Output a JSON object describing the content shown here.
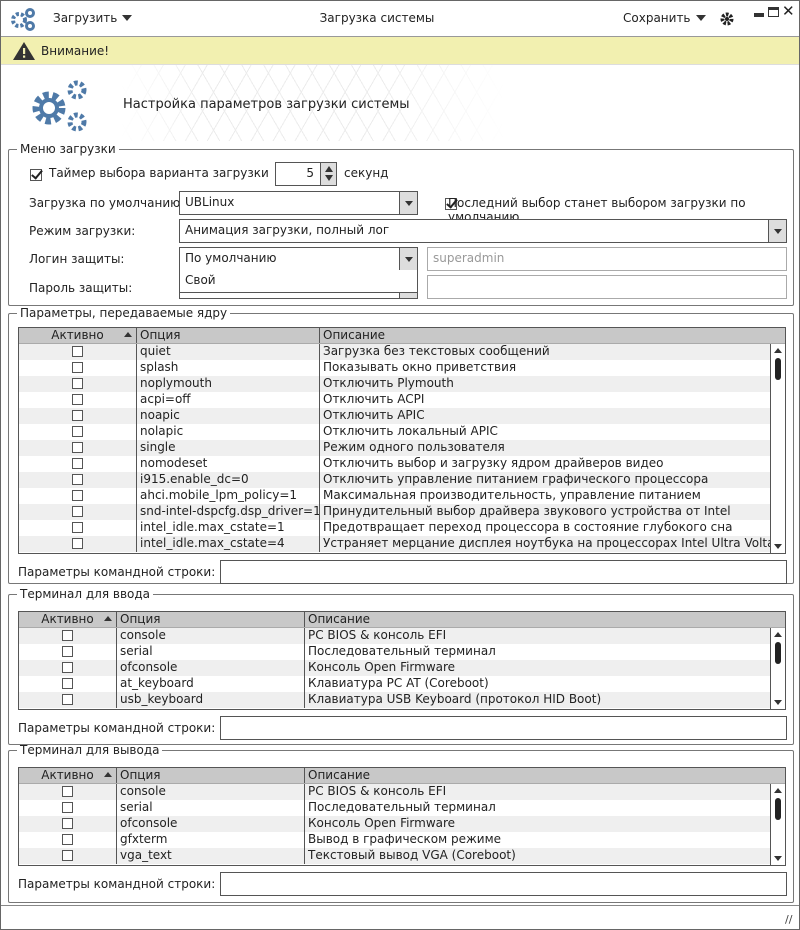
{
  "titlebar": {
    "app_icon": "gears-icon",
    "load_menu": "Загрузить",
    "title": "Загрузка системы",
    "save_menu": "Сохранить",
    "settings_icon": "gear-icon"
  },
  "warning": {
    "icon": "warning-icon",
    "text": "Внимание!"
  },
  "banner": {
    "title": "Настройка параметров загрузки системы"
  },
  "boot_menu": {
    "legend": "Меню загрузки",
    "timer_label": "Таймер выбора варианта загрузки",
    "timer_checked": true,
    "timer_value": "5",
    "timer_unit": "секунд",
    "default_label": "Загрузка по умолчанию:",
    "default_value": "UBLinux",
    "last_choice_label": "Последний выбор станет выбором загрузки по умолчанию",
    "last_choice_checked": true,
    "mode_label": "Режим загрузки:",
    "mode_value": "Анимация загрузки, полный лог",
    "login_label": "Логин защиты:",
    "login_value": "По умолчанию",
    "login_dropdown_option": "Свой",
    "login_placeholder": "superadmin",
    "password_label": "Пароль защиты:"
  },
  "kernel": {
    "legend": "Параметры, передаваемые ядру",
    "cols": [
      "Активно",
      "Опция",
      "Описание"
    ],
    "cmdline_label": "Параметры командной строки:",
    "rows": [
      [
        "quiet",
        "Загрузка без текстовых сообщений"
      ],
      [
        "splash",
        "Показывать окно приветствия"
      ],
      [
        "noplymouth",
        "Отключить Plymouth"
      ],
      [
        "acpi=off",
        "Отключить ACPI"
      ],
      [
        "noapic",
        "Отключить APIC"
      ],
      [
        "nolapic",
        "Отключить локальный APIC"
      ],
      [
        "single",
        "Режим одного пользователя"
      ],
      [
        "nomodeset",
        "Отключить выбор и загрузку ядром драйверов видео"
      ],
      [
        "i915.enable_dc=0",
        "Отключить управление питанием графического процессора"
      ],
      [
        "ahci.mobile_lpm_policy=1",
        "Максимальная производительность, управление питанием"
      ],
      [
        "snd-intel-dspcfg.dsp_driver=1",
        "Принудительный выбор драйвера звукового устройства от Intel"
      ],
      [
        "intel_idle.max_cstate=1",
        "Предотвращает переход процессора в состояние глубокого сна"
      ],
      [
        "intel_idle.max_cstate=4",
        "Устраняет мерцание дисплея ноутбука на процессорах Intel Ultra Voltage"
      ]
    ]
  },
  "term_in": {
    "legend": "Терминал для ввода",
    "cols": [
      "Активно",
      "Опция",
      "Описание"
    ],
    "cmdline_label": "Параметры командной строки:",
    "rows": [
      [
        "console",
        "PC BIOS & консоль EFI"
      ],
      [
        "serial",
        "Последовательный терминал"
      ],
      [
        "ofconsole",
        "Консоль Open Firmware"
      ],
      [
        "at_keyboard",
        "Клавиатура PC AT (Coreboot)"
      ],
      [
        "usb_keyboard",
        "Клавиатура USB Keyboard (протокол HID Boot)"
      ]
    ]
  },
  "term_out": {
    "legend": "Терминал для вывода",
    "cols": [
      "Активно",
      "Опция",
      "Описание"
    ],
    "cmdline_label": "Параметры командной строки:",
    "rows": [
      [
        "console",
        "PC BIOS & консоль EFI"
      ],
      [
        "serial",
        "Последовательный терминал"
      ],
      [
        "ofconsole",
        "Консоль Open Firmware"
      ],
      [
        "gfxterm",
        "Вывод в графическом режиме"
      ],
      [
        "vga_text",
        "Текстовый вывод VGA (Coreboot)"
      ]
    ]
  },
  "colors": {
    "accent": "#4f7aa8",
    "warning_bg": "#f2f0b0"
  }
}
